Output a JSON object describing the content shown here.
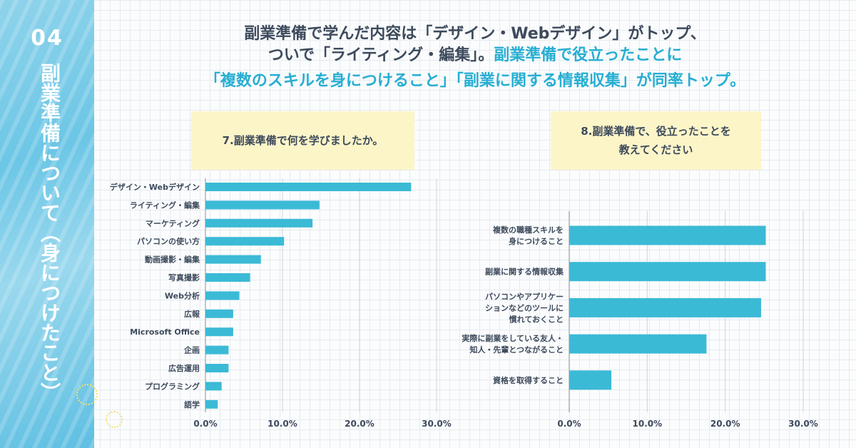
{
  "sidebar": {
    "number": "04",
    "title": "副業準備について（身につけたこと）"
  },
  "headline": {
    "line1": "副業準備で学んだ内容は「デザイン・Webデザイン」がトップ、",
    "line2_plain": "ついで「ライティング・編集」。",
    "line2_accent": "副業準備で役立ったことに",
    "line3_accent": "「複数のスキルを身につけること」「副業に関する情報収集」が同率トップ。"
  },
  "colors": {
    "bar": "#3bbad6",
    "accent": "#27aed2",
    "text": "#3d4a5c",
    "question_bg": "#fcf5c8",
    "sidebar": "#6cc6e6"
  },
  "chart_data": [
    {
      "type": "bar",
      "orientation": "horizontal",
      "title": "7.副業準備で何を学びましたか。",
      "categories": [
        "デザイン・Webデザイン",
        "ライティング・編集",
        "マーケティング",
        "パソコンの使い方",
        "動画撮影・編集",
        "写真撮影",
        "Web分析",
        "広報",
        "Microsoft Office",
        "企画",
        "広告運用",
        "プログラミング",
        "語学"
      ],
      "values": [
        26.7,
        14.8,
        13.9,
        10.2,
        7.2,
        5.8,
        4.4,
        3.6,
        3.6,
        3.0,
        3.0,
        2.1,
        1.6
      ],
      "xlim": [
        0,
        30
      ],
      "xticks": [
        "0.0%",
        "10.0%",
        "20.0%",
        "30.0%"
      ],
      "grid": true
    },
    {
      "type": "bar",
      "orientation": "horizontal",
      "title": "8.副業準備で、役立ったことを教えてください",
      "categories": [
        [
          "複数の職種スキルを",
          "身につけること"
        ],
        [
          "副業に関する情報収集"
        ],
        [
          "パソコンやアプリケー",
          "ションなどのツールに",
          "慣れておくこと"
        ],
        [
          "実際に副業をしている友人・",
          "知人・先輩とつながること"
        ],
        [
          "資格を取得すること"
        ]
      ],
      "values": [
        25.2,
        25.2,
        24.6,
        17.6,
        5.4
      ],
      "xlim": [
        0,
        30
      ],
      "xticks": [
        "0.0%",
        "10.0%",
        "20.0%",
        "30.0%"
      ],
      "grid": true
    }
  ]
}
